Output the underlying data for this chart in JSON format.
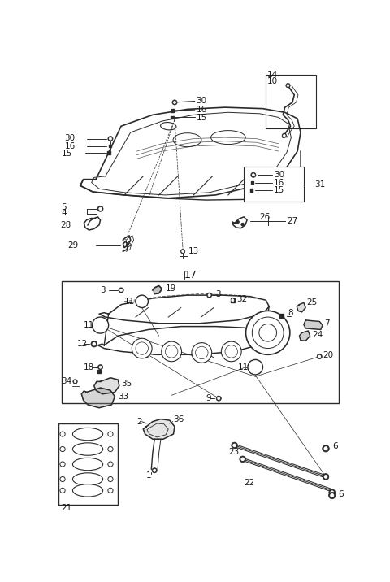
{
  "bg_color": "#ffffff",
  "line_color": "#2a2a2a",
  "fig_width": 4.8,
  "fig_height": 7.16,
  "dpi": 100
}
